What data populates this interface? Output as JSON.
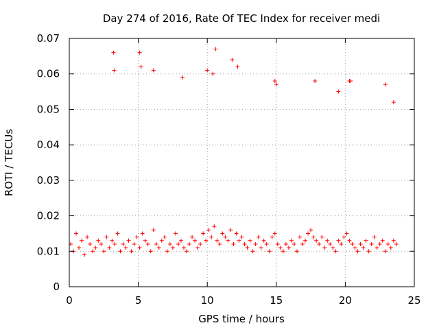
{
  "chart_data": {
    "type": "scatter",
    "title": "Day 274 of 2016, Rate Of TEC Index for receiver medi",
    "xlabel": "GPS time / hours",
    "ylabel": "ROTI / TECUs",
    "xlim": [
      0,
      25
    ],
    "ylim": [
      0,
      0.07
    ],
    "xticks": [
      0,
      5,
      10,
      15,
      20,
      25
    ],
    "xtick_labels": [
      "0",
      "5",
      "10",
      "15",
      "20",
      "25"
    ],
    "yticks": [
      0,
      0.01,
      0.02,
      0.03,
      0.04,
      0.05,
      0.06,
      0.07
    ],
    "ytick_labels": [
      "0",
      "0.01",
      "0.02",
      "0.03",
      "0.04",
      "0.05",
      "0.06",
      "0.07"
    ],
    "grid": true,
    "marker": "plus",
    "series": [
      {
        "name": "ROTI",
        "color": "#ff0000",
        "x": [
          0.1,
          0.3,
          0.5,
          0.7,
          0.9,
          1.1,
          1.3,
          1.5,
          1.7,
          1.9,
          2.1,
          2.3,
          2.5,
          2.7,
          2.9,
          3.1,
          3.3,
          3.5,
          3.7,
          3.9,
          4.1,
          4.3,
          4.5,
          4.7,
          4.9,
          5.1,
          5.3,
          5.5,
          5.7,
          5.9,
          6.1,
          6.3,
          6.5,
          6.7,
          6.9,
          7.1,
          7.3,
          7.5,
          7.7,
          7.9,
          8.1,
          8.3,
          8.5,
          8.7,
          8.9,
          9.1,
          9.3,
          9.5,
          9.7,
          9.9,
          10.1,
          10.3,
          10.5,
          10.7,
          10.9,
          11.1,
          11.3,
          11.5,
          11.7,
          11.9,
          12.1,
          12.3,
          12.5,
          12.7,
          12.9,
          13.1,
          13.3,
          13.5,
          13.7,
          13.9,
          14.1,
          14.3,
          14.5,
          14.7,
          14.9,
          15.1,
          15.3,
          15.5,
          15.7,
          15.9,
          16.1,
          16.3,
          16.5,
          16.7,
          16.9,
          17.1,
          17.3,
          17.5,
          17.7,
          17.9,
          18.1,
          18.3,
          18.5,
          18.7,
          18.9,
          19.1,
          19.3,
          19.5,
          19.7,
          19.9,
          20.1,
          20.3,
          20.5,
          20.7,
          20.9,
          21.1,
          21.3,
          21.5,
          21.7,
          21.9,
          22.1,
          22.3,
          22.5,
          22.7,
          22.9,
          23.1,
          23.3,
          23.5,
          23.7,
          3.2,
          3.25,
          5.1,
          5.2,
          6.1,
          8.2,
          10.0,
          10.4,
          10.6,
          11.8,
          12.2,
          14.9,
          15.0,
          17.8,
          19.5,
          20.3,
          20.4,
          22.9,
          23.5
        ],
        "y": [
          0.012,
          0.01,
          0.015,
          0.011,
          0.013,
          0.009,
          0.014,
          0.012,
          0.01,
          0.011,
          0.013,
          0.012,
          0.01,
          0.014,
          0.011,
          0.013,
          0.012,
          0.015,
          0.01,
          0.012,
          0.011,
          0.013,
          0.01,
          0.012,
          0.014,
          0.011,
          0.015,
          0.013,
          0.012,
          0.01,
          0.016,
          0.012,
          0.011,
          0.013,
          0.014,
          0.01,
          0.012,
          0.011,
          0.015,
          0.012,
          0.013,
          0.011,
          0.01,
          0.012,
          0.014,
          0.013,
          0.011,
          0.012,
          0.015,
          0.013,
          0.016,
          0.014,
          0.017,
          0.013,
          0.012,
          0.015,
          0.014,
          0.013,
          0.016,
          0.012,
          0.015,
          0.013,
          0.014,
          0.012,
          0.011,
          0.013,
          0.01,
          0.012,
          0.014,
          0.011,
          0.013,
          0.012,
          0.01,
          0.014,
          0.015,
          0.012,
          0.011,
          0.01,
          0.012,
          0.011,
          0.013,
          0.012,
          0.01,
          0.014,
          0.012,
          0.013,
          0.015,
          0.016,
          0.014,
          0.013,
          0.012,
          0.014,
          0.011,
          0.013,
          0.012,
          0.011,
          0.01,
          0.013,
          0.012,
          0.014,
          0.015,
          0.013,
          0.012,
          0.011,
          0.01,
          0.012,
          0.011,
          0.013,
          0.01,
          0.012,
          0.014,
          0.011,
          0.012,
          0.013,
          0.01,
          0.012,
          0.011,
          0.013,
          0.012,
          0.066,
          0.061,
          0.066,
          0.062,
          0.061,
          0.059,
          0.061,
          0.06,
          0.067,
          0.064,
          0.062,
          0.058,
          0.057,
          0.058,
          0.055,
          0.058,
          0.058,
          0.057,
          0.052
        ]
      }
    ]
  }
}
